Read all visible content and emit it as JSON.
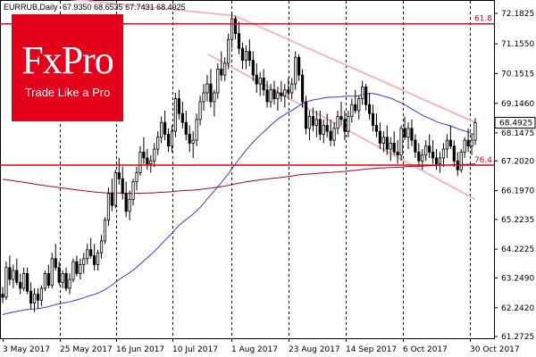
{
  "header": {
    "symbol": "EURRUB,Daily",
    "ohlc": "67.9350 68.6535 67.7431 68.4925"
  },
  "logo": {
    "brand": "FxPro",
    "tagline": "Trade Like a Pro"
  },
  "colors": {
    "brand_red": "#e4001b",
    "ma_fast": "#3a3ad0",
    "ma_slow": "#b0002a",
    "channel": "#f4b6c2",
    "candles": "#000000",
    "grid": "#000000"
  },
  "current_price_label": "68.4925",
  "fib_levels": [
    {
      "label": "61.8",
      "price": 71.83
    },
    {
      "label": "76.4",
      "price": 67.06
    }
  ],
  "chart_data": {
    "type": "candlestick",
    "title": "",
    "y_ticks": [
      "72.1825",
      "71.1550",
      "70.1515",
      "69.1460",
      "68.1475",
      "67.2020",
      "66.1970",
      "65.2235",
      "64.2225",
      "63.2490",
      "62.2420",
      "61.2725"
    ],
    "y_tick_values": [
      72.1825,
      71.155,
      70.1515,
      69.146,
      68.1475,
      67.202,
      66.197,
      65.2235,
      64.2225,
      63.249,
      62.242,
      61.2725
    ],
    "ylim": [
      61.2725,
      72.1825
    ],
    "x_ticks": [
      "3 May 2017",
      "25 May 2017",
      "16 Jun 2017",
      "10 Jul 2017",
      "1 Aug 2017",
      "23 Aug 2017",
      "14 Sep 2017",
      "6 Oct 2017",
      "30 Oct 2017"
    ],
    "candles": [
      [
        62.7,
        62.95,
        62.4,
        62.6
      ],
      [
        62.6,
        63.8,
        62.5,
        63.6
      ],
      [
        63.6,
        64.0,
        63.0,
        63.2
      ],
      [
        63.2,
        63.7,
        62.9,
        63.5
      ],
      [
        63.5,
        63.9,
        63.0,
        63.1
      ],
      [
        63.1,
        63.4,
        62.7,
        62.9
      ],
      [
        62.9,
        63.6,
        62.8,
        63.4
      ],
      [
        63.4,
        63.6,
        62.7,
        62.8
      ],
      [
        62.8,
        63.1,
        62.2,
        62.4
      ],
      [
        62.4,
        62.9,
        62.1,
        62.7
      ],
      [
        62.7,
        62.9,
        62.2,
        62.5
      ],
      [
        62.5,
        63.0,
        62.3,
        62.9
      ],
      [
        62.9,
        63.5,
        62.8,
        63.4
      ],
      [
        63.4,
        63.7,
        62.9,
        63.0
      ],
      [
        63.0,
        64.1,
        62.9,
        63.9
      ],
      [
        63.9,
        64.4,
        63.5,
        63.6
      ],
      [
        63.6,
        63.8,
        63.0,
        63.1
      ],
      [
        63.1,
        63.5,
        62.9,
        63.4
      ],
      [
        63.4,
        63.6,
        62.8,
        62.9
      ],
      [
        62.9,
        63.4,
        62.7,
        63.2
      ],
      [
        63.2,
        63.9,
        63.1,
        63.8
      ],
      [
        63.8,
        64.0,
        63.3,
        63.4
      ],
      [
        63.4,
        63.9,
        63.2,
        63.7
      ],
      [
        63.7,
        64.1,
        63.4,
        63.9
      ],
      [
        63.9,
        64.4,
        63.7,
        64.2
      ],
      [
        64.2,
        64.6,
        63.9,
        64.0
      ],
      [
        64.0,
        64.4,
        63.5,
        63.7
      ],
      [
        63.7,
        64.2,
        63.5,
        64.1
      ],
      [
        64.1,
        64.7,
        63.9,
        64.5
      ],
      [
        64.5,
        65.3,
        64.4,
        65.2
      ],
      [
        65.2,
        66.3,
        65.0,
        66.1
      ],
      [
        66.1,
        66.6,
        65.5,
        65.7
      ],
      [
        65.7,
        66.9,
        65.6,
        66.8
      ],
      [
        66.8,
        67.3,
        66.4,
        66.6
      ],
      [
        66.6,
        67.0,
        65.9,
        66.1
      ],
      [
        66.1,
        66.5,
        65.3,
        65.5
      ],
      [
        65.5,
        66.2,
        65.2,
        65.9
      ],
      [
        65.9,
        66.6,
        65.7,
        66.5
      ],
      [
        66.5,
        67.0,
        66.2,
        66.8
      ],
      [
        66.8,
        67.7,
        66.7,
        67.5
      ],
      [
        67.5,
        68.0,
        67.1,
        67.3
      ],
      [
        67.3,
        67.6,
        66.9,
        67.1
      ],
      [
        67.1,
        67.4,
        66.8,
        67.2
      ],
      [
        67.2,
        67.8,
        67.0,
        67.6
      ],
      [
        67.6,
        68.2,
        67.4,
        68.0
      ],
      [
        68.0,
        68.7,
        67.8,
        68.5
      ],
      [
        68.5,
        68.9,
        67.9,
        68.1
      ],
      [
        68.1,
        68.3,
        67.5,
        67.7
      ],
      [
        67.7,
        68.4,
        67.5,
        68.2
      ],
      [
        68.2,
        69.5,
        68.0,
        69.3
      ],
      [
        69.3,
        69.6,
        68.6,
        68.8
      ],
      [
        68.8,
        69.2,
        68.3,
        68.5
      ],
      [
        68.5,
        68.9,
        67.9,
        68.1
      ],
      [
        68.1,
        68.4,
        67.5,
        67.8
      ],
      [
        67.8,
        68.2,
        67.3,
        67.9
      ],
      [
        67.9,
        68.8,
        67.7,
        68.6
      ],
      [
        68.6,
        69.4,
        68.4,
        69.2
      ],
      [
        69.2,
        69.8,
        68.9,
        69.5
      ],
      [
        69.5,
        70.1,
        69.2,
        69.8
      ],
      [
        69.8,
        70.3,
        69.0,
        69.2
      ],
      [
        69.2,
        69.6,
        68.7,
        69.5
      ],
      [
        69.5,
        70.5,
        69.3,
        70.3
      ],
      [
        70.3,
        70.9,
        69.9,
        70.1
      ],
      [
        70.1,
        70.7,
        69.9,
        70.5
      ],
      [
        70.5,
        71.5,
        70.3,
        71.3
      ],
      [
        71.3,
        72.2,
        71.0,
        72.0
      ],
      [
        72.0,
        72.1,
        71.3,
        71.5
      ],
      [
        71.5,
        71.9,
        70.8,
        71.0
      ],
      [
        71.0,
        71.2,
        70.3,
        70.6
      ],
      [
        70.6,
        71.1,
        70.3,
        70.9
      ],
      [
        70.9,
        71.3,
        70.4,
        70.6
      ],
      [
        70.6,
        70.9,
        69.9,
        70.1
      ],
      [
        70.1,
        70.5,
        69.5,
        69.8
      ],
      [
        69.8,
        70.2,
        69.4,
        70.0
      ],
      [
        70.0,
        70.3,
        69.4,
        69.6
      ],
      [
        69.6,
        69.9,
        69.0,
        69.2
      ],
      [
        69.2,
        69.8,
        69.0,
        69.6
      ],
      [
        69.6,
        69.9,
        69.1,
        69.3
      ],
      [
        69.3,
        69.7,
        68.9,
        69.5
      ],
      [
        69.5,
        69.9,
        69.2,
        69.4
      ],
      [
        69.4,
        69.8,
        69.0,
        69.6
      ],
      [
        69.6,
        70.0,
        69.3,
        69.5
      ],
      [
        69.5,
        70.0,
        69.3,
        69.8
      ],
      [
        69.8,
        70.9,
        69.6,
        70.7
      ],
      [
        70.7,
        70.8,
        69.9,
        70.1
      ],
      [
        70.1,
        70.3,
        69.0,
        69.2
      ],
      [
        69.2,
        69.4,
        68.1,
        68.3
      ],
      [
        68.3,
        68.9,
        67.9,
        68.7
      ],
      [
        68.7,
        69.0,
        68.2,
        68.4
      ],
      [
        68.4,
        68.9,
        68.0,
        68.6
      ],
      [
        68.6,
        68.9,
        67.9,
        68.1
      ],
      [
        68.1,
        68.6,
        67.8,
        68.4
      ],
      [
        68.4,
        68.8,
        68.0,
        68.2
      ],
      [
        68.2,
        68.6,
        67.7,
        67.9
      ],
      [
        67.9,
        68.5,
        67.7,
        68.3
      ],
      [
        68.3,
        68.9,
        68.1,
        68.7
      ],
      [
        68.7,
        69.2,
        68.4,
        68.6
      ],
      [
        68.6,
        68.9,
        67.9,
        68.2
      ],
      [
        68.2,
        68.9,
        68.0,
        68.7
      ],
      [
        68.7,
        69.3,
        68.5,
        69.1
      ],
      [
        69.1,
        69.6,
        68.8,
        68.9
      ],
      [
        68.9,
        69.4,
        68.6,
        69.3
      ],
      [
        69.3,
        69.9,
        69.1,
        69.7
      ],
      [
        69.7,
        69.8,
        68.9,
        69.1
      ],
      [
        69.1,
        69.5,
        68.6,
        68.8
      ],
      [
        68.8,
        69.1,
        68.2,
        68.4
      ],
      [
        68.4,
        68.8,
        68.0,
        68.2
      ],
      [
        68.2,
        68.5,
        67.6,
        67.8
      ],
      [
        67.8,
        68.2,
        67.5,
        68.0
      ],
      [
        68.0,
        68.4,
        67.4,
        67.6
      ],
      [
        67.6,
        68.0,
        67.2,
        67.8
      ],
      [
        67.8,
        68.2,
        67.4,
        67.5
      ],
      [
        67.5,
        67.9,
        67.1,
        67.4
      ],
      [
        67.4,
        68.4,
        67.2,
        68.3
      ],
      [
        68.3,
        68.7,
        67.9,
        68.0
      ],
      [
        68.0,
        68.5,
        67.6,
        68.3
      ],
      [
        68.3,
        68.6,
        67.7,
        67.9
      ],
      [
        67.9,
        68.1,
        67.3,
        67.5
      ],
      [
        67.5,
        67.8,
        67.0,
        67.2
      ],
      [
        67.2,
        67.6,
        66.9,
        67.4
      ],
      [
        67.4,
        67.9,
        67.2,
        67.7
      ],
      [
        67.7,
        68.1,
        67.3,
        67.5
      ],
      [
        67.5,
        67.9,
        67.1,
        67.3
      ],
      [
        67.3,
        67.6,
        66.9,
        67.1
      ],
      [
        67.1,
        67.5,
        66.8,
        67.3
      ],
      [
        67.3,
        67.8,
        67.0,
        67.6
      ],
      [
        67.6,
        68.1,
        67.3,
        67.9
      ],
      [
        67.9,
        68.4,
        67.6,
        67.7
      ],
      [
        67.7,
        67.9,
        67.0,
        67.2
      ],
      [
        67.2,
        67.5,
        66.7,
        66.9
      ],
      [
        66.9,
        67.6,
        66.8,
        67.5
      ],
      [
        67.5,
        68.0,
        67.3,
        67.9
      ],
      [
        67.9,
        68.3,
        67.5,
        67.7
      ],
      [
        67.7,
        68.1,
        67.4,
        67.9
      ],
      [
        67.9,
        68.65,
        67.74,
        68.49
      ]
    ]
  }
}
